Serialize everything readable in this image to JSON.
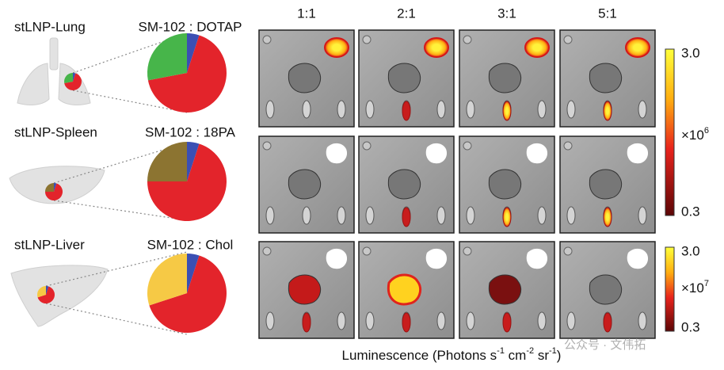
{
  "rows": [
    {
      "label": "stLNP-Lung",
      "pie": {
        "title": "SM-102 : DOTAP",
        "slices": [
          {
            "color": "#3b4fb3",
            "value": 5
          },
          {
            "color": "#e3242b",
            "value": 67
          },
          {
            "color": "#47b54a",
            "value": 28
          }
        ]
      }
    },
    {
      "label": "stLNP-Spleen",
      "pie": {
        "title": "SM-102 : 18PA",
        "slices": [
          {
            "color": "#3b4fb3",
            "value": 5
          },
          {
            "color": "#e3242b",
            "value": 70
          },
          {
            "color": "#8c7431",
            "value": 25
          }
        ]
      }
    },
    {
      "label": "stLNP-Liver",
      "pie": {
        "title": "SM-102 : Chol",
        "slices": [
          {
            "color": "#3b4fb3",
            "value": 5
          },
          {
            "color": "#e3242b",
            "value": 65
          },
          {
            "color": "#f6c945",
            "value": 30
          }
        ]
      }
    }
  ],
  "columns": [
    "1:1",
    "2:1",
    "3:1",
    "5:1"
  ],
  "colorbars": [
    {
      "max": "3.0",
      "multiplier": "×10",
      "exponent": "6",
      "min": "0.3"
    },
    {
      "max": "3.0",
      "multiplier": "×10",
      "exponent": "7",
      "min": "0.3"
    }
  ],
  "axis_label": [
    "Luminescence (Photons s",
    "-1",
    " cm",
    "-2",
    " sr",
    "-1",
    ")"
  ],
  "watermark": "公众号 · 文伟拓"
}
